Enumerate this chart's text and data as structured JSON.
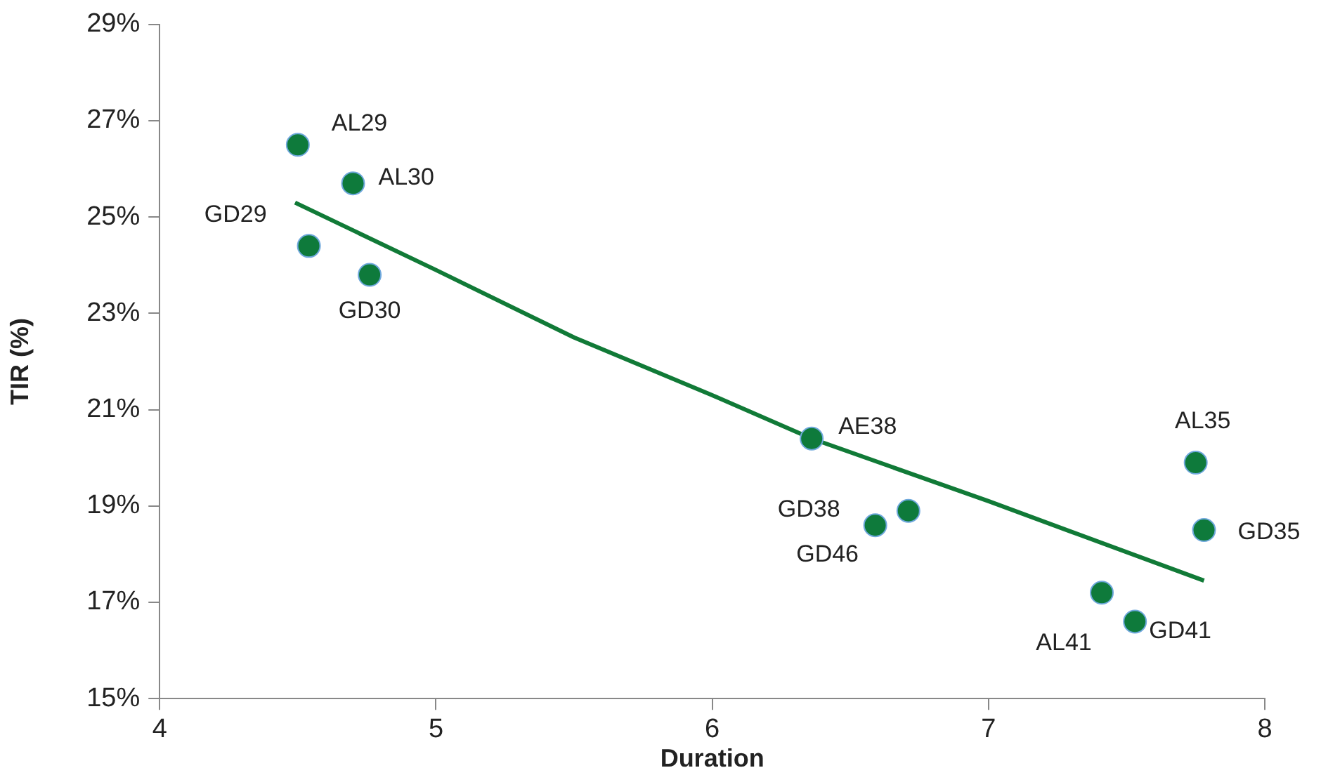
{
  "chart_data": {
    "type": "scatter",
    "xlabel": "Duration",
    "ylabel": "TIR (%)",
    "xlim": [
      4,
      8
    ],
    "xticks": [
      4,
      5,
      6,
      7,
      8
    ],
    "ylim": [
      15,
      29
    ],
    "yticks": [
      {
        "value": 15,
        "label": "15%"
      },
      {
        "value": 17,
        "label": "17%"
      },
      {
        "value": 19,
        "label": "19%"
      },
      {
        "value": 21,
        "label": "21%"
      },
      {
        "value": 23,
        "label": "23%"
      },
      {
        "value": 25,
        "label": "25%"
      },
      {
        "value": 27,
        "label": "27%"
      },
      {
        "value": 29,
        "label": "29%"
      }
    ],
    "grid": false,
    "legend": false,
    "series": [
      {
        "marker": "circle",
        "color": "#0e7a3b",
        "x": [
          4.5,
          4.7,
          4.54,
          4.76,
          6.36,
          6.59,
          6.71,
          7.75,
          7.78,
          7.41,
          7.53
        ],
        "values": [
          26.5,
          25.7,
          24.4,
          23.8,
          20.4,
          18.6,
          18.9,
          19.9,
          18.5,
          17.2,
          16.6
        ]
      },
      {
        "type": "line",
        "color": "#117a37",
        "line_style": "solid",
        "x": [
          4.49,
          5,
          5.5,
          6,
          6.36,
          7,
          7.78
        ],
        "values": [
          25.3,
          23.9,
          22.5,
          21.3,
          20.4,
          19.1,
          17.45
        ]
      }
    ],
    "annotations": [
      {
        "text": "AL29",
        "x": 4.5,
        "y": 26.5
      },
      {
        "text": "AL30",
        "x": 4.7,
        "y": 25.7
      },
      {
        "text": "GD29",
        "x": 4.54,
        "y": 24.4
      },
      {
        "text": "GD30",
        "x": 4.76,
        "y": 23.8
      },
      {
        "text": "AE38",
        "x": 6.36,
        "y": 20.4
      },
      {
        "text": "GD38",
        "x": 6.59,
        "y": 18.6
      },
      {
        "text": "GD46",
        "x": 6.59,
        "y": 18.6
      },
      {
        "text": "AL35",
        "x": 7.75,
        "y": 19.9
      },
      {
        "text": "GD35",
        "x": 7.78,
        "y": 18.5
      },
      {
        "text": "AL41",
        "x": 7.41,
        "y": 17.2
      },
      {
        "text": "GD41",
        "x": 7.53,
        "y": 16.6
      }
    ]
  }
}
